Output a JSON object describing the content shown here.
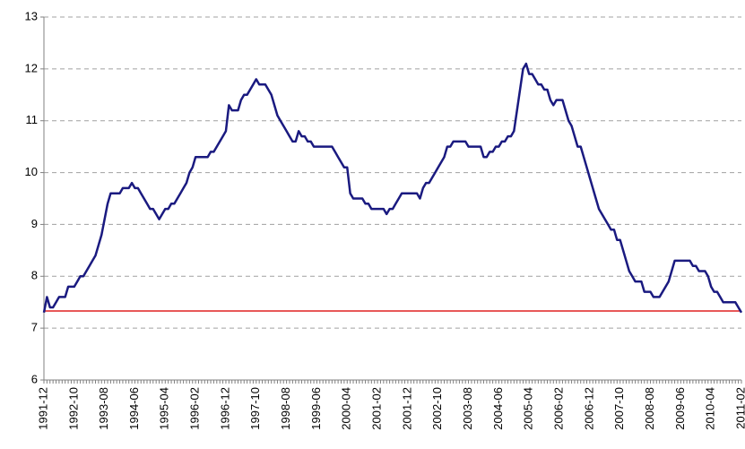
{
  "chart_data": {
    "type": "line",
    "categories": [
      "1991-12",
      null,
      null,
      null,
      null,
      null,
      null,
      null,
      null,
      null,
      "1992-10",
      null,
      null,
      null,
      null,
      null,
      null,
      null,
      null,
      null,
      "1993-08",
      null,
      null,
      null,
      null,
      null,
      null,
      null,
      null,
      null,
      "1994-06",
      null,
      null,
      null,
      null,
      null,
      null,
      null,
      null,
      null,
      "1995-04",
      null,
      null,
      null,
      null,
      null,
      null,
      null,
      null,
      null,
      "1996-02",
      null,
      null,
      null,
      null,
      null,
      null,
      null,
      null,
      null,
      "1996-12",
      null,
      null,
      null,
      null,
      null,
      null,
      null,
      null,
      null,
      "1997-10",
      null,
      null,
      null,
      null,
      null,
      null,
      null,
      null,
      null,
      "1998-08",
      null,
      null,
      null,
      null,
      null,
      null,
      null,
      null,
      null,
      "1999-06",
      null,
      null,
      null,
      null,
      null,
      null,
      null,
      null,
      null,
      "2000-04",
      null,
      null,
      null,
      null,
      null,
      null,
      null,
      null,
      null,
      "2001-02",
      null,
      null,
      null,
      null,
      null,
      null,
      null,
      null,
      null,
      "2001-12",
      null,
      null,
      null,
      null,
      null,
      null,
      null,
      null,
      null,
      "2002-10",
      null,
      null,
      null,
      null,
      null,
      null,
      null,
      null,
      null,
      "2003-08",
      null,
      null,
      null,
      null,
      null,
      null,
      null,
      null,
      null,
      "2004-06",
      null,
      null,
      null,
      null,
      null,
      null,
      null,
      null,
      null,
      "2005-04",
      null,
      null,
      null,
      null,
      null,
      null,
      null,
      null,
      null,
      "2006-02",
      null,
      null,
      null,
      null,
      null,
      null,
      null,
      null,
      null,
      "2006-12",
      null,
      null,
      null,
      null,
      null,
      null,
      null,
      null,
      null,
      "2007-10",
      null,
      null,
      null,
      null,
      null,
      null,
      null,
      null,
      null,
      "2008-08",
      null,
      null,
      null,
      null,
      null,
      null,
      null,
      null,
      null,
      "2009-06",
      null,
      null,
      null,
      null,
      null,
      null,
      null,
      null,
      null,
      "2010-04",
      null,
      null,
      null,
      null,
      null,
      null,
      null,
      null,
      null,
      "2011-02"
    ],
    "series": [
      {
        "color": "#1a1a80",
        "values": [
          7.3,
          7.6,
          7.4,
          7.4,
          7.5,
          7.6,
          7.6,
          7.6,
          7.8,
          7.8,
          7.8,
          7.9,
          8.0,
          8.0,
          8.1,
          8.2,
          8.3,
          8.4,
          8.6,
          8.8,
          9.1,
          9.4,
          9.6,
          9.6,
          9.6,
          9.6,
          9.7,
          9.7,
          9.7,
          9.8,
          9.7,
          9.7,
          9.6,
          9.5,
          9.4,
          9.3,
          9.3,
          9.2,
          9.1,
          9.2,
          9.3,
          9.3,
          9.4,
          9.4,
          9.5,
          9.6,
          9.7,
          9.8,
          10.0,
          10.1,
          10.3,
          10.3,
          10.3,
          10.3,
          10.3,
          10.4,
          10.4,
          10.5,
          10.6,
          10.7,
          10.8,
          11.3,
          11.2,
          11.2,
          11.2,
          11.4,
          11.5,
          11.5,
          11.6,
          11.7,
          11.8,
          11.7,
          11.7,
          11.7,
          11.6,
          11.5,
          11.3,
          11.1,
          11.0,
          10.9,
          10.8,
          10.7,
          10.6,
          10.6,
          10.8,
          10.7,
          10.7,
          10.6,
          10.6,
          10.5,
          10.5,
          10.5,
          10.5,
          10.5,
          10.5,
          10.5,
          10.4,
          10.3,
          10.2,
          10.1,
          10.1,
          9.6,
          9.5,
          9.5,
          9.5,
          9.5,
          9.4,
          9.4,
          9.3,
          9.3,
          9.3,
          9.3,
          9.3,
          9.2,
          9.3,
          9.3,
          9.4,
          9.5,
          9.6,
          9.6,
          9.6,
          9.6,
          9.6,
          9.6,
          9.5,
          9.7,
          9.8,
          9.8,
          9.9,
          10.0,
          10.1,
          10.2,
          10.3,
          10.5,
          10.5,
          10.6,
          10.6,
          10.6,
          10.6,
          10.6,
          10.5,
          10.5,
          10.5,
          10.5,
          10.5,
          10.3,
          10.3,
          10.4,
          10.4,
          10.5,
          10.5,
          10.6,
          10.6,
          10.7,
          10.7,
          10.8,
          11.2,
          11.6,
          12.0,
          12.1,
          11.9,
          11.9,
          11.8,
          11.7,
          11.7,
          11.6,
          11.6,
          11.4,
          11.3,
          11.4,
          11.4,
          11.4,
          11.2,
          11.0,
          10.9,
          10.7,
          10.5,
          10.5,
          10.3,
          10.1,
          9.9,
          9.7,
          9.5,
          9.3,
          9.2,
          9.1,
          9.0,
          8.9,
          8.9,
          8.7,
          8.7,
          8.5,
          8.3,
          8.1,
          8.0,
          7.9,
          7.9,
          7.9,
          7.7,
          7.7,
          7.7,
          7.6,
          7.6,
          7.6,
          7.7,
          7.8,
          7.9,
          8.1,
          8.3,
          8.3,
          8.3,
          8.3,
          8.3,
          8.3,
          8.2,
          8.2,
          8.1,
          8.1,
          8.1,
          8.0,
          7.8,
          7.7,
          7.7,
          7.6,
          7.5,
          7.5,
          7.5,
          7.5,
          7.5,
          7.4,
          7.3
        ]
      }
    ],
    "reference_line": {
      "value": 7.33,
      "color": "#e02020"
    },
    "ylim": [
      6,
      13
    ],
    "yticks": [
      6,
      7,
      8,
      9,
      10,
      11,
      12,
      13
    ],
    "grid": true
  }
}
